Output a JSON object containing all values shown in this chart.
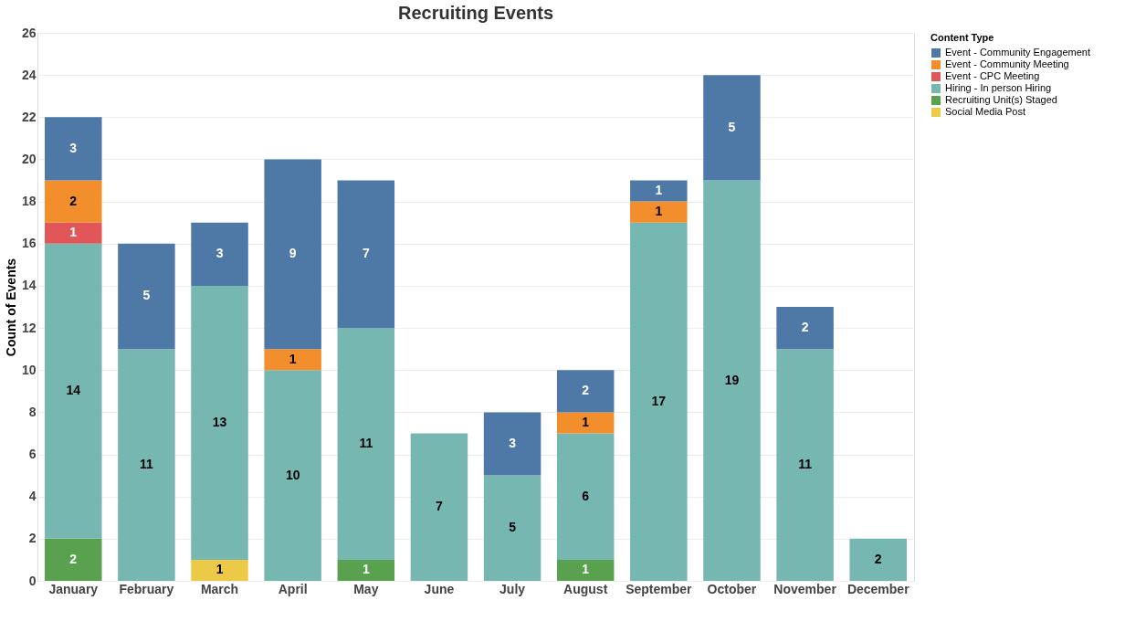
{
  "chart_data": {
    "type": "bar",
    "title": "Recruiting Events",
    "ylabel": "Count of Events",
    "legend_title": "Content Type",
    "stacked": true,
    "data_labels": true,
    "grid": "y",
    "legend": "top right",
    "categories": [
      "January",
      "February",
      "March",
      "April",
      "May",
      "June",
      "July",
      "August",
      "September",
      "October",
      "November",
      "December"
    ],
    "ylim": [
      0,
      26
    ],
    "yticks": [
      0,
      2,
      4,
      6,
      8,
      10,
      12,
      14,
      16,
      18,
      20,
      22,
      24,
      26
    ],
    "series": [
      {
        "name": "Social Media Post",
        "color": "#edc948",
        "values": [
          null,
          null,
          1,
          null,
          null,
          null,
          null,
          null,
          null,
          null,
          null,
          null
        ]
      },
      {
        "name": "Recruiting Unit(s) Staged",
        "color": "#59a14f",
        "values": [
          2,
          null,
          null,
          null,
          1,
          null,
          null,
          1,
          null,
          null,
          null,
          null
        ]
      },
      {
        "name": "Hiring - In person Hiring",
        "color": "#76b7b2",
        "values": [
          14,
          11,
          13,
          10,
          11,
          7,
          5,
          6,
          17,
          19,
          11,
          2
        ]
      },
      {
        "name": "Event - CPC Meeting",
        "color": "#e15759",
        "values": [
          1,
          null,
          null,
          null,
          null,
          null,
          null,
          null,
          null,
          null,
          null,
          null
        ]
      },
      {
        "name": "Event - Community Meeting",
        "color": "#f28e2b",
        "values": [
          2,
          null,
          null,
          1,
          null,
          null,
          null,
          1,
          1,
          null,
          null,
          null
        ]
      },
      {
        "name": "Event - Community Engagement",
        "color": "#4e79a7",
        "values": [
          3,
          5,
          3,
          9,
          7,
          null,
          3,
          2,
          1,
          5,
          2,
          null
        ]
      }
    ]
  }
}
